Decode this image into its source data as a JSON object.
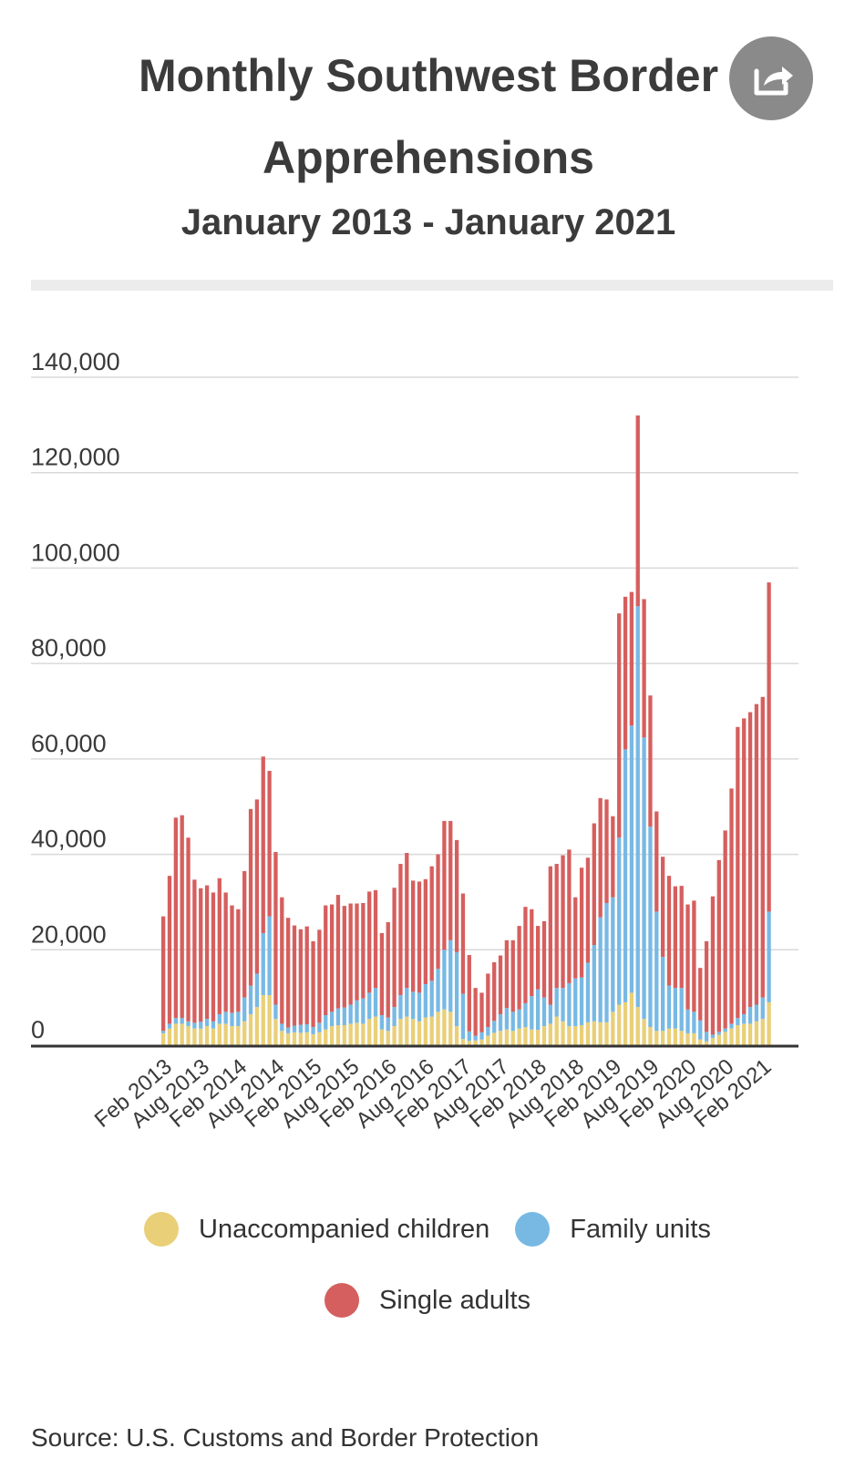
{
  "header": {
    "title_line1": "Monthly Southwest Border",
    "title_line2": "Apprehensions",
    "subtitle": "January 2013 - January 2021",
    "share_icon": "share-icon"
  },
  "colors": {
    "children": "#e9cf78",
    "family": "#78b9e4",
    "adults": "#d55f5e",
    "grid": "#d9d9d9",
    "axis": "#333333",
    "text": "#3a3a3a"
  },
  "chart_data": {
    "type": "bar",
    "stacked": true,
    "title": "Monthly Southwest Border Apprehensions",
    "subtitle": "January 2013 - January 2021",
    "ylim": [
      0,
      140000
    ],
    "yticks": [
      0,
      20000,
      40000,
      60000,
      80000,
      100000,
      120000,
      140000
    ],
    "ytick_labels": [
      "0",
      "20,000",
      "40,000",
      "60,000",
      "80,000",
      "100,000",
      "120,000",
      "140,000"
    ],
    "grid": true,
    "legend_position": "bottom",
    "x_tick_labels": [
      {
        "label": "Feb 2013",
        "index": 1
      },
      {
        "label": "Aug 2013",
        "index": 7
      },
      {
        "label": "Feb 2014",
        "index": 13
      },
      {
        "label": "Aug 2014",
        "index": 19
      },
      {
        "label": "Feb 2015",
        "index": 25
      },
      {
        "label": "Aug 2015",
        "index": 31
      },
      {
        "label": "Feb 2016",
        "index": 37
      },
      {
        "label": "Aug 2016",
        "index": 43
      },
      {
        "label": "Feb 2017",
        "index": 49
      },
      {
        "label": "Aug 2017",
        "index": 55
      },
      {
        "label": "Feb 2018",
        "index": 61
      },
      {
        "label": "Aug 2018",
        "index": 67
      },
      {
        "label": "Feb 2019",
        "index": 73
      },
      {
        "label": "Aug 2019",
        "index": 79
      },
      {
        "label": "Feb 2020",
        "index": 85
      },
      {
        "label": "Aug 2020",
        "index": 91
      },
      {
        "label": "Feb 2021",
        "index": 97
      }
    ],
    "series": [
      {
        "name": "Unaccompanied children",
        "values": [
          2500,
          3500,
          4500,
          4500,
          4000,
          3500,
          3500,
          4000,
          3500,
          4500,
          4500,
          4000,
          4000,
          5000,
          6500,
          8000,
          10500,
          10500,
          5500,
          3000,
          2500,
          2700,
          2600,
          2700,
          2300,
          2700,
          3300,
          4000,
          4200,
          4200,
          4500,
          4700,
          4500,
          5500,
          6000,
          3300,
          3000,
          4000,
          5500,
          6000,
          5500,
          5000,
          5800,
          6000,
          7000,
          7500,
          7000,
          4000,
          1300,
          900,
          1000,
          1200,
          2000,
          2600,
          3000,
          3300,
          3000,
          3500,
          3800,
          3300,
          3200,
          4000,
          4500,
          6000,
          5000,
          4000,
          4000,
          4200,
          4800,
          5000,
          4800,
          4800,
          7000,
          8500,
          9000,
          11000,
          8000,
          5500,
          3800,
          3000,
          3000,
          3500,
          3500,
          3000,
          2500,
          2500,
          1200,
          800,
          1500,
          2200,
          2800,
          3500,
          4200,
          4500,
          4500,
          5000,
          5500,
          9000
        ]
      },
      {
        "name": "Family units",
        "values": [
          500,
          1000,
          1200,
          1200,
          1000,
          1200,
          1400,
          1500,
          1500,
          2000,
          2500,
          2800,
          3000,
          5000,
          6000,
          7000,
          13000,
          16500,
          3000,
          1500,
          1200,
          1400,
          1700,
          1700,
          1500,
          2000,
          3000,
          3000,
          3500,
          3700,
          4000,
          4700,
          5300,
          5500,
          6000,
          3000,
          2800,
          4000,
          5000,
          6000,
          5700,
          6000,
          7000,
          7500,
          9000,
          12500,
          15000,
          15500,
          9500,
          2000,
          1000,
          1500,
          1800,
          2500,
          3500,
          4500,
          4000,
          4000,
          5000,
          7000,
          8500,
          6000,
          4000,
          6000,
          7000,
          9000,
          10000,
          10000,
          12500,
          16000,
          22000,
          25000,
          24000,
          35000,
          53000,
          56000,
          84000,
          59000,
          42000,
          25000,
          15500,
          9000,
          8500,
          9000,
          5000,
          4500,
          4000,
          2000,
          700,
          600,
          700,
          1000,
          1500,
          2000,
          3500,
          3500,
          4500,
          19000
        ]
      },
      {
        "name": "Single adults",
        "values": [
          24000,
          31000,
          42000,
          42500,
          38500,
          30000,
          28000,
          28000,
          27000,
          28500,
          25000,
          22500,
          21500,
          26500,
          37000,
          36500,
          37000,
          30500,
          32000,
          26500,
          23000,
          21000,
          20000,
          20500,
          18000,
          19500,
          23000,
          22500,
          23800,
          21300,
          21200,
          20300,
          20000,
          21200,
          20500,
          17200,
          20000,
          25000,
          27500,
          28300,
          23300,
          23300,
          22000,
          24000,
          24000,
          27000,
          25000,
          23500,
          21000,
          16000,
          10000,
          8300,
          11200,
          12300,
          12300,
          14200,
          15000,
          17500,
          20200,
          18200,
          13300,
          16000,
          29000,
          26000,
          27800,
          28000,
          17000,
          23000,
          22000,
          25500,
          25000,
          21700,
          17000,
          47000,
          32000,
          28000,
          40000,
          29000,
          27500,
          21000,
          21000,
          23000,
          21300,
          21400,
          22000,
          23300,
          11000,
          19000,
          29000,
          36000,
          41500,
          49300,
          61000,
          62000,
          61800,
          63000,
          63000,
          69000
        ]
      }
    ]
  },
  "legend": {
    "items": [
      {
        "label": "Unaccompanied children",
        "color": "#e9cf78"
      },
      {
        "label": "Family units",
        "color": "#78b9e4"
      },
      {
        "label": "Single adults",
        "color": "#d55f5e"
      }
    ]
  },
  "footer": {
    "source": "Source: U.S. Customs and Border Protection"
  }
}
